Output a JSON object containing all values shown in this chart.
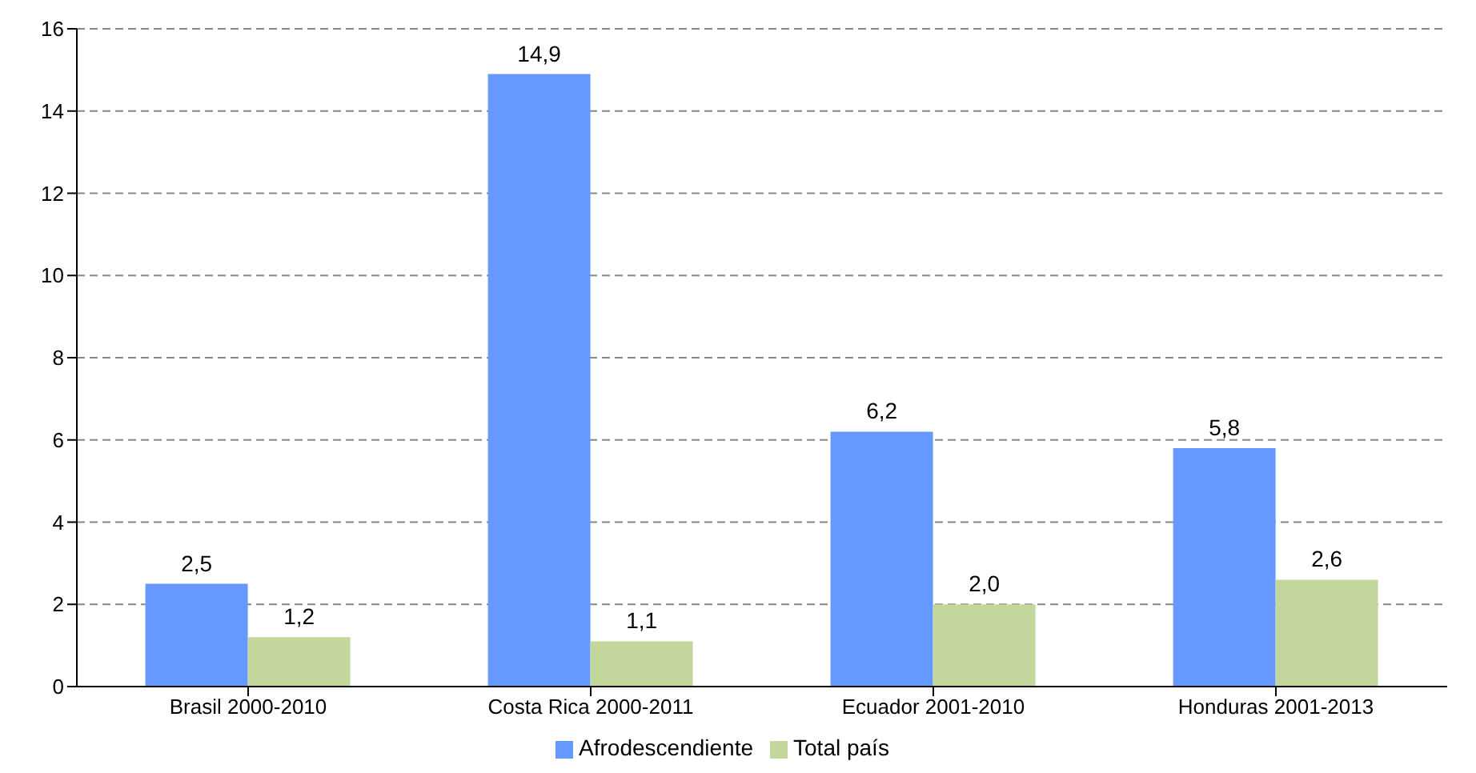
{
  "chart_data": {
    "type": "bar",
    "categories": [
      "Brasil 2000-2010",
      "Costa Rica 2000-2011",
      "Ecuador 2001-2010",
      "Honduras 2001-2013"
    ],
    "series": [
      {
        "name": "Afrodescendiente",
        "color": "#6699ff",
        "values": [
          2.5,
          14.9,
          6.2,
          5.8
        ],
        "value_labels": [
          "2,5",
          "14,9",
          "6,2",
          "5,8"
        ]
      },
      {
        "name": "Total país",
        "color": "#c3d69b",
        "values": [
          1.2,
          1.1,
          2.0,
          2.6
        ],
        "value_labels": [
          "1,2",
          "1,1",
          "2,0",
          "2,6"
        ]
      }
    ],
    "ylim": [
      0,
      16
    ],
    "yticks": [
      0,
      2,
      4,
      6,
      8,
      10,
      12,
      14,
      16
    ],
    "grid": "y",
    "legend": "bottom"
  }
}
